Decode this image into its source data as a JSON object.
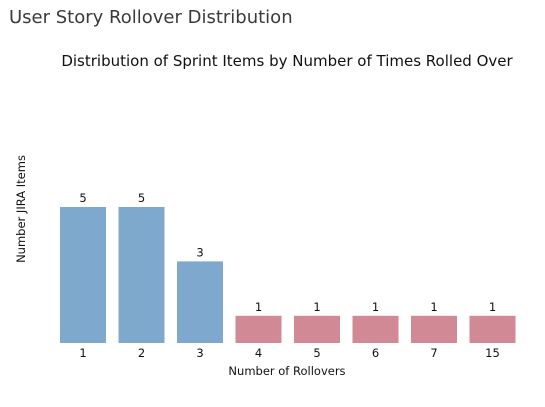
{
  "page": {
    "heading": "User Story Rollover Distribution"
  },
  "colors": {
    "low_rollover_bar": "#7ea8cc",
    "high_rollover_bar": "#d08995",
    "text": "#111111"
  },
  "chart_data": {
    "type": "bar",
    "title": "Distribution of Sprint Items by Number of Times Rolled Over",
    "xlabel": "Number of Rollovers",
    "ylabel": "Number JIRA Items",
    "categories": [
      "1",
      "2",
      "3",
      "4",
      "5",
      "6",
      "7",
      "15"
    ],
    "values": [
      5,
      5,
      3,
      1,
      1,
      1,
      1,
      1
    ],
    "bar_groups": [
      "low",
      "low",
      "low",
      "high",
      "high",
      "high",
      "high",
      "high"
    ],
    "ylim": [
      0,
      5
    ],
    "grid": false,
    "legend": false,
    "data_labels": true
  }
}
